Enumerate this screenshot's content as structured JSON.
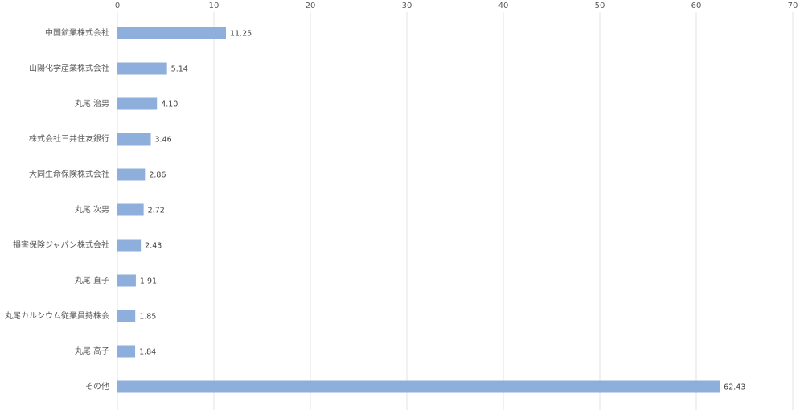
{
  "chart_data": {
    "type": "bar",
    "orientation": "horizontal",
    "categories": [
      "中国鉱業株式会社",
      "山陽化学産業株式会社",
      "丸尾 治男",
      "株式会社三井住友銀行",
      "大同生命保険株式会社",
      "丸尾 次男",
      "損害保険ジャパン株式会社",
      "丸尾 直子",
      "丸尾カルシウム従業員持株会",
      "丸尾 高子",
      "その他"
    ],
    "values": [
      11.25,
      5.14,
      4.1,
      3.46,
      2.86,
      2.72,
      2.43,
      1.91,
      1.85,
      1.84,
      62.43
    ],
    "value_labels": [
      "11.25",
      "5.14",
      "4.10",
      "3.46",
      "2.86",
      "2.72",
      "2.43",
      "1.91",
      "1.85",
      "1.84",
      "62.43"
    ],
    "color": "#8eaedb",
    "xlim": [
      0,
      70
    ],
    "xticks": [
      0,
      10,
      20,
      30,
      40,
      50,
      60,
      70
    ],
    "grid": true
  }
}
